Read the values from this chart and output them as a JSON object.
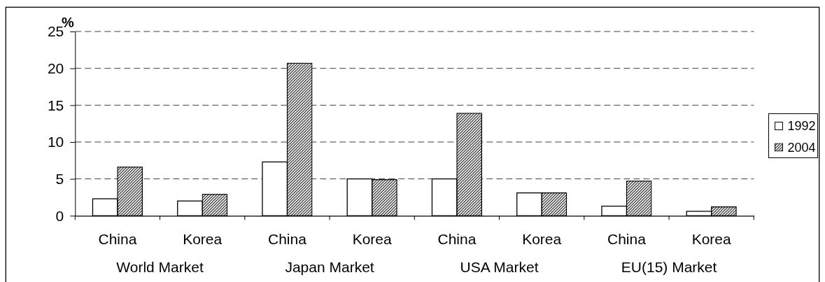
{
  "chart_data": {
    "type": "bar",
    "ylabel": "%",
    "categories": [
      "China",
      "Korea",
      "China",
      "Korea",
      "China",
      "Korea",
      "China",
      "Korea"
    ],
    "series": [
      {
        "name": "1992",
        "color": "#ffffff",
        "values": [
          2.3,
          2.0,
          7.3,
          5.0,
          5.0,
          3.1,
          1.3,
          0.6
        ]
      },
      {
        "name": "2004",
        "color": "#404040",
        "values": [
          6.6,
          2.9,
          20.7,
          4.9,
          13.9,
          3.1,
          4.7,
          1.2
        ]
      }
    ],
    "ylim": [
      0,
      25
    ],
    "yticks": [
      0,
      5,
      10,
      15,
      20,
      25
    ],
    "grid": "y",
    "legend": "right",
    "annotations": [
      "World Market",
      "Japan Market",
      "USA Market",
      "EU(15) Market"
    ]
  }
}
